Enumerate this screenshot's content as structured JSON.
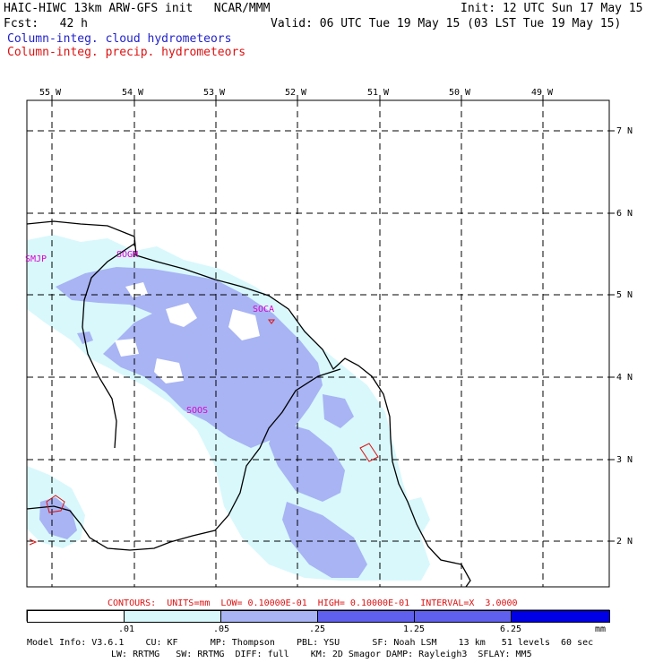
{
  "header": {
    "line1_left": "HAIC-HIWC 13km ARW-GFS init   NCAR/MMM",
    "line1_right": "Init: 12 UTC Sun 17 May 15",
    "line2_left": "Fcst:   42 h",
    "line2_right": "Valid: 06 UTC Tue 19 May 15 (03 LST Tue 19 May 15)",
    "field1": "Column-integ. cloud hydrometeors",
    "field2": "Column-integ. precip. hydrometeors"
  },
  "colors": {
    "level1": "#d8f8fc",
    "level2": "#a8b4f4",
    "level3": "#6060ee",
    "level4": "#0000e6",
    "contour": "#dd1111",
    "station": "#dd00cc"
  },
  "lon_labels": [
    "55 W",
    "54 W",
    "53 W",
    "52 W",
    "51 W",
    "50 W",
    "49 W"
  ],
  "lat_labels": [
    "7 N",
    "6 N",
    "5 N",
    "4 N",
    "3 N",
    "2 N"
  ],
  "stations": [
    "SMJP",
    "SOGM",
    "SOCA",
    "SOOS"
  ],
  "contour_info": "CONTOURS:  UNITS=mm  LOW= 0.10000E-01  HIGH= 0.10000E-01  INTERVAL=X  3.0000",
  "legend": {
    "ticks": [
      ".01",
      ".05",
      ".25",
      "1.25",
      "6.25"
    ],
    "units": "mm"
  },
  "footer": {
    "line1": "Model Info: V3.6.1    CU: KF      MP: Thompson    PBL: YSU      SF: Noah LSM    13 km   51 levels  60 sec",
    "line2": "LW: RRTMG   SW: RRTMG  DIFF: full    KM: 2D Smagor DAMP: Rayleigh3  SFLAY: MM5"
  }
}
